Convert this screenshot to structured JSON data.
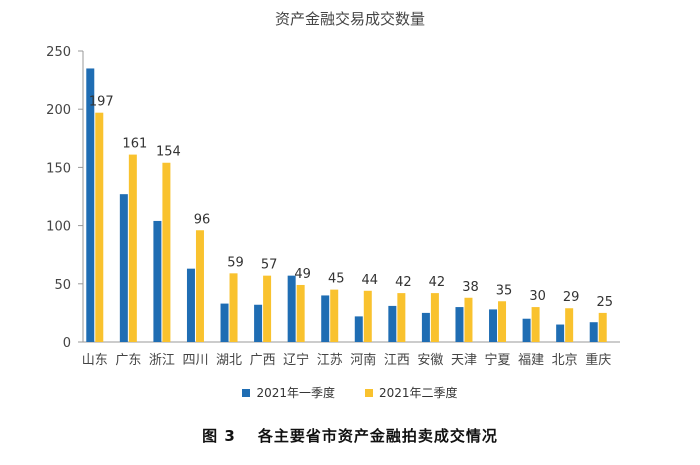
{
  "chart_data": {
    "type": "bar",
    "title": "资产金融交易成交数量",
    "categories": [
      "山东",
      "广东",
      "浙江",
      "四川",
      "湖北",
      "广西",
      "辽宁",
      "江苏",
      "河南",
      "江西",
      "安徽",
      "天津",
      "宁夏",
      "福建",
      "北京",
      "重庆"
    ],
    "series": [
      {
        "name": "2021年一季度",
        "color": "#1f6db3",
        "values": [
          235,
          127,
          104,
          63,
          33,
          32,
          57,
          40,
          22,
          31,
          25,
          30,
          28,
          20,
          15,
          17
        ]
      },
      {
        "name": "2021年二季度",
        "color": "#f9c22e",
        "values": [
          197,
          161,
          154,
          96,
          59,
          57,
          49,
          45,
          44,
          42,
          42,
          38,
          35,
          30,
          29,
          25
        ]
      }
    ],
    "data_labels_series": 1,
    "ylim": [
      0,
      250
    ],
    "yticks": [
      0,
      50,
      100,
      150,
      200,
      250
    ],
    "grid": false,
    "legend_position": "bottom"
  },
  "caption": {
    "figure_no": "图 3",
    "text": "各主要省市资产金融拍卖成交情况"
  }
}
